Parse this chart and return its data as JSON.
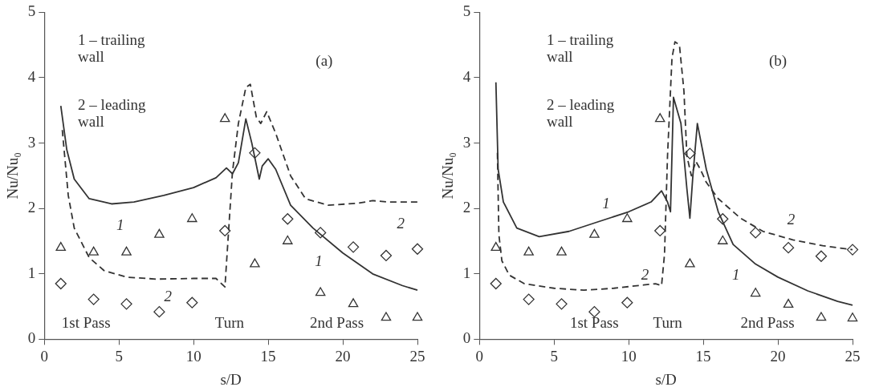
{
  "chart_data": [
    {
      "type": "line",
      "xlabel": "s/D",
      "ylabel": "Nu/Nu₀",
      "xlim": [
        0,
        25
      ],
      "ylim": [
        0,
        5
      ],
      "xticks": [
        0,
        5,
        10,
        15,
        20,
        25
      ],
      "yticks": [
        0,
        1,
        2,
        3,
        4,
        5
      ],
      "grid": false,
      "legend": false,
      "series": [
        {
          "type": "line",
          "color": "#333333",
          "line_style": "solid",
          "marker": "none",
          "x": [
            1.1,
            1.5,
            2,
            3,
            4.5,
            6,
            8,
            10,
            11.5,
            12.2,
            12.6,
            13,
            13.5,
            13.9,
            14.4,
            14.6,
            15,
            15.5,
            16.5,
            18,
            20,
            22,
            24,
            25
          ],
          "values": [
            3.57,
            2.9,
            2.45,
            2.15,
            2.07,
            2.1,
            2.2,
            2.32,
            2.47,
            2.62,
            2.53,
            2.7,
            3.37,
            3.0,
            2.45,
            2.65,
            2.76,
            2.6,
            2.05,
            1.7,
            1.32,
            1.0,
            0.82,
            0.75
          ]
        },
        {
          "type": "line",
          "color": "#333333",
          "line_style": "dashed",
          "marker": "none",
          "x": [
            1.2,
            1.6,
            2,
            3,
            4,
            5.5,
            7.5,
            10,
            11.5,
            12.1,
            12.3,
            12.6,
            13,
            13.5,
            13.8,
            14.2,
            14.5,
            14.9,
            15.5,
            16.5,
            17.5,
            19,
            21,
            22,
            23,
            25
          ],
          "values": [
            3.2,
            2.2,
            1.7,
            1.25,
            1.05,
            0.95,
            0.92,
            0.93,
            0.93,
            0.8,
            1.5,
            2.55,
            3.3,
            3.85,
            3.9,
            3.4,
            3.3,
            3.48,
            3.15,
            2.5,
            2.15,
            2.05,
            2.08,
            2.12,
            2.1,
            2.1
          ]
        },
        {
          "type": "scatter",
          "color": "#333333",
          "marker": "triangle",
          "x": [
            1.1,
            3.3,
            5.5,
            7.7,
            9.9,
            12.1,
            14.1,
            16.3,
            18.5,
            20.7,
            22.9,
            25
          ],
          "values": [
            1.4,
            1.33,
            1.33,
            1.6,
            1.84,
            3.37,
            1.15,
            1.5,
            0.71,
            0.54,
            0.33,
            0.33
          ]
        },
        {
          "type": "scatter",
          "color": "#333333",
          "marker": "diamond",
          "x": [
            1.1,
            3.3,
            5.5,
            7.7,
            9.9,
            12.1,
            14.1,
            16.3,
            18.5,
            20.7,
            22.9,
            25
          ],
          "values": [
            0.85,
            0.61,
            0.54,
            0.42,
            0.56,
            1.66,
            2.85,
            1.84,
            1.63,
            1.41,
            1.28,
            1.38
          ]
        }
      ],
      "annotations": [
        "1 – trailing wall",
        "2 – leading wall",
        "(a)",
        "1st Pass",
        "Turn",
        "2nd Pass",
        "1",
        "1",
        "2",
        "2"
      ]
    },
    {
      "type": "line",
      "xlabel": "s/D",
      "ylabel": "Nu/Nu₀",
      "xlim": [
        0,
        25
      ],
      "ylim": [
        0,
        5
      ],
      "xticks": [
        0,
        5,
        10,
        15,
        20,
        25
      ],
      "yticks": [
        0,
        1,
        2,
        3,
        4,
        5
      ],
      "grid": false,
      "legend": false,
      "series": [
        {
          "type": "line",
          "color": "#333333",
          "line_style": "solid",
          "marker": "none",
          "x": [
            1.1,
            1.25,
            1.6,
            2.5,
            4,
            6,
            8,
            10,
            11.5,
            12.2,
            12.6,
            12.8,
            13,
            13.5,
            13.9,
            14.1,
            14.3,
            14.6,
            15.2,
            16,
            17,
            18.5,
            20,
            22,
            24,
            25
          ],
          "values": [
            3.93,
            2.6,
            2.1,
            1.7,
            1.57,
            1.65,
            1.8,
            1.95,
            2.1,
            2.27,
            2.1,
            1.95,
            3.7,
            3.3,
            2.3,
            1.85,
            2.5,
            3.3,
            2.6,
            1.95,
            1.45,
            1.15,
            0.95,
            0.74,
            0.58,
            0.52
          ]
        },
        {
          "type": "line",
          "color": "#333333",
          "line_style": "dashed",
          "marker": "none",
          "x": [
            1.2,
            1.3,
            1.5,
            2,
            3,
            5,
            7,
            9,
            11,
            11.8,
            12.2,
            12.4,
            12.6,
            12.9,
            13.1,
            13.4,
            13.7,
            13.9,
            14.2,
            14.5,
            14.8,
            15.2,
            16,
            17.5,
            19,
            21,
            23,
            25
          ],
          "values": [
            2.85,
            1.6,
            1.2,
            0.98,
            0.85,
            0.78,
            0.75,
            0.78,
            0.83,
            0.85,
            0.82,
            1.3,
            2.8,
            4.3,
            4.55,
            4.5,
            3.8,
            2.8,
            2.5,
            2.72,
            2.6,
            2.4,
            2.15,
            1.85,
            1.65,
            1.52,
            1.43,
            1.37
          ]
        },
        {
          "type": "scatter",
          "color": "#333333",
          "marker": "triangle",
          "x": [
            1.1,
            3.3,
            5.5,
            7.7,
            9.9,
            12.1,
            14.1,
            16.3,
            18.5,
            20.7,
            22.9,
            25
          ],
          "values": [
            1.4,
            1.33,
            1.33,
            1.6,
            1.84,
            3.37,
            1.15,
            1.5,
            0.7,
            0.53,
            0.33,
            0.32
          ]
        },
        {
          "type": "scatter",
          "color": "#333333",
          "marker": "diamond",
          "x": [
            1.1,
            3.3,
            5.5,
            7.7,
            9.9,
            12.1,
            14.1,
            16.3,
            18.5,
            20.7,
            22.9,
            25
          ],
          "values": [
            0.85,
            0.61,
            0.54,
            0.42,
            0.56,
            1.66,
            2.84,
            1.84,
            1.63,
            1.4,
            1.27,
            1.37
          ]
        }
      ],
      "annotations": [
        "1 – trailing wall",
        "2 – leading wall",
        "(b)",
        "1st Pass",
        "Turn",
        "2nd Pass",
        "1",
        "1",
        "2",
        "2"
      ]
    }
  ]
}
